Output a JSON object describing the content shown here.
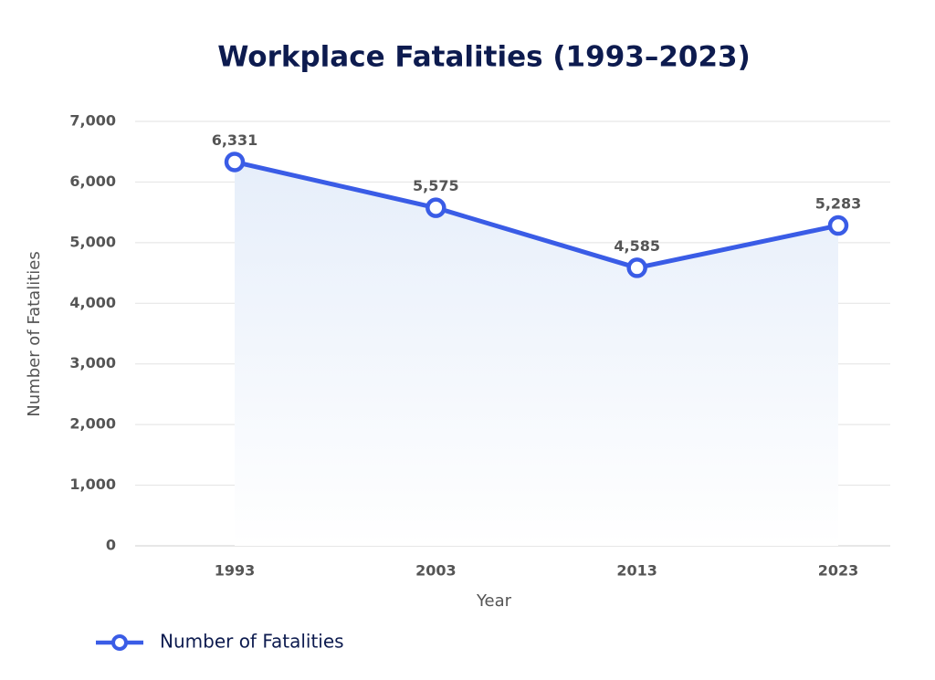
{
  "chart_data": {
    "type": "line",
    "title": "Workplace Fatalities (1993–2023)",
    "x_label": "Year",
    "y_label": "Number of Fatalities",
    "categories": [
      "1993",
      "2003",
      "2013",
      "2023"
    ],
    "series": [
      {
        "name": "Number of Fatalities",
        "color": "#3a5ce6",
        "values": [
          6331,
          5575,
          4585,
          5283
        ],
        "value_labels": [
          "6,331",
          "5,575",
          "4,585",
          "5,283"
        ]
      }
    ],
    "ylim": [
      0,
      7000
    ],
    "yticks": [
      0,
      {
        "value": 1000,
        "label": "1,000"
      },
      {
        "value": 2000,
        "label": "2,000"
      },
      {
        "value": 3000,
        "label": "3,000"
      },
      {
        "value": 4000,
        "label": "4,000"
      },
      {
        "value": 5000,
        "label": "5,000"
      },
      {
        "value": 6000,
        "label": "6,000"
      },
      {
        "value": 7000,
        "label": "7,000"
      }
    ],
    "grid": true,
    "legend": "bottom-left",
    "area_fill": true
  }
}
